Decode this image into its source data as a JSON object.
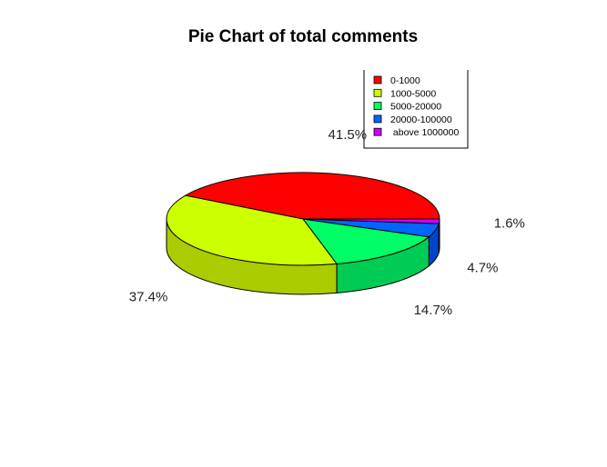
{
  "chart_data": {
    "type": "pie",
    "style": "3d",
    "title": "Pie Chart of total comments",
    "categories": [
      "0-1000",
      "1000-5000",
      "5000-20000",
      "20000-100000",
      " above 1000000"
    ],
    "values": [
      41.5,
      37.4,
      14.7,
      4.7,
      1.6
    ],
    "value_labels": [
      "41.5%",
      "37.4%",
      "14.7%",
      "4.7%",
      "1.6%"
    ],
    "colors": [
      "#ff0000",
      "#ccff00",
      "#00ff66",
      "#0066ff",
      "#cc00ff"
    ],
    "side_colors": [
      "#cc0000",
      "#aacc00",
      "#00cc55",
      "#0044cc",
      "#9900cc"
    ],
    "legend_position": "top-right",
    "legend_labels": [
      "0-1000",
      "1000-5000",
      "5000-20000",
      "20000-100000",
      " above 1000000"
    ]
  }
}
